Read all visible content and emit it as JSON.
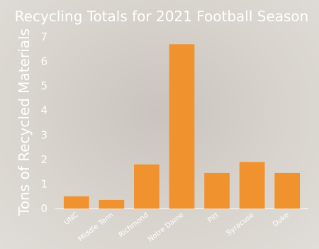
{
  "colors": {
    "bar": "#f0922e",
    "text": "#ffffff",
    "axis": "#ffffff"
  },
  "chart_data": {
    "type": "bar",
    "title": "Recycling Totals for 2021 Football Season",
    "xlabel": "",
    "ylabel": "Tons of Recycled Materials",
    "categories": [
      "UNC",
      "Middle Tenn",
      "Richmond",
      "Notre Dame",
      "Pitt",
      "Syracuse",
      "Duke"
    ],
    "values": [
      0.5,
      0.35,
      1.8,
      6.7,
      1.45,
      1.9,
      1.45
    ],
    "yticks": [
      "0",
      "1",
      "2",
      "3",
      "4",
      "5",
      "6",
      "7"
    ],
    "ylim": [
      0,
      7
    ],
    "grid": false,
    "legend": "none"
  }
}
